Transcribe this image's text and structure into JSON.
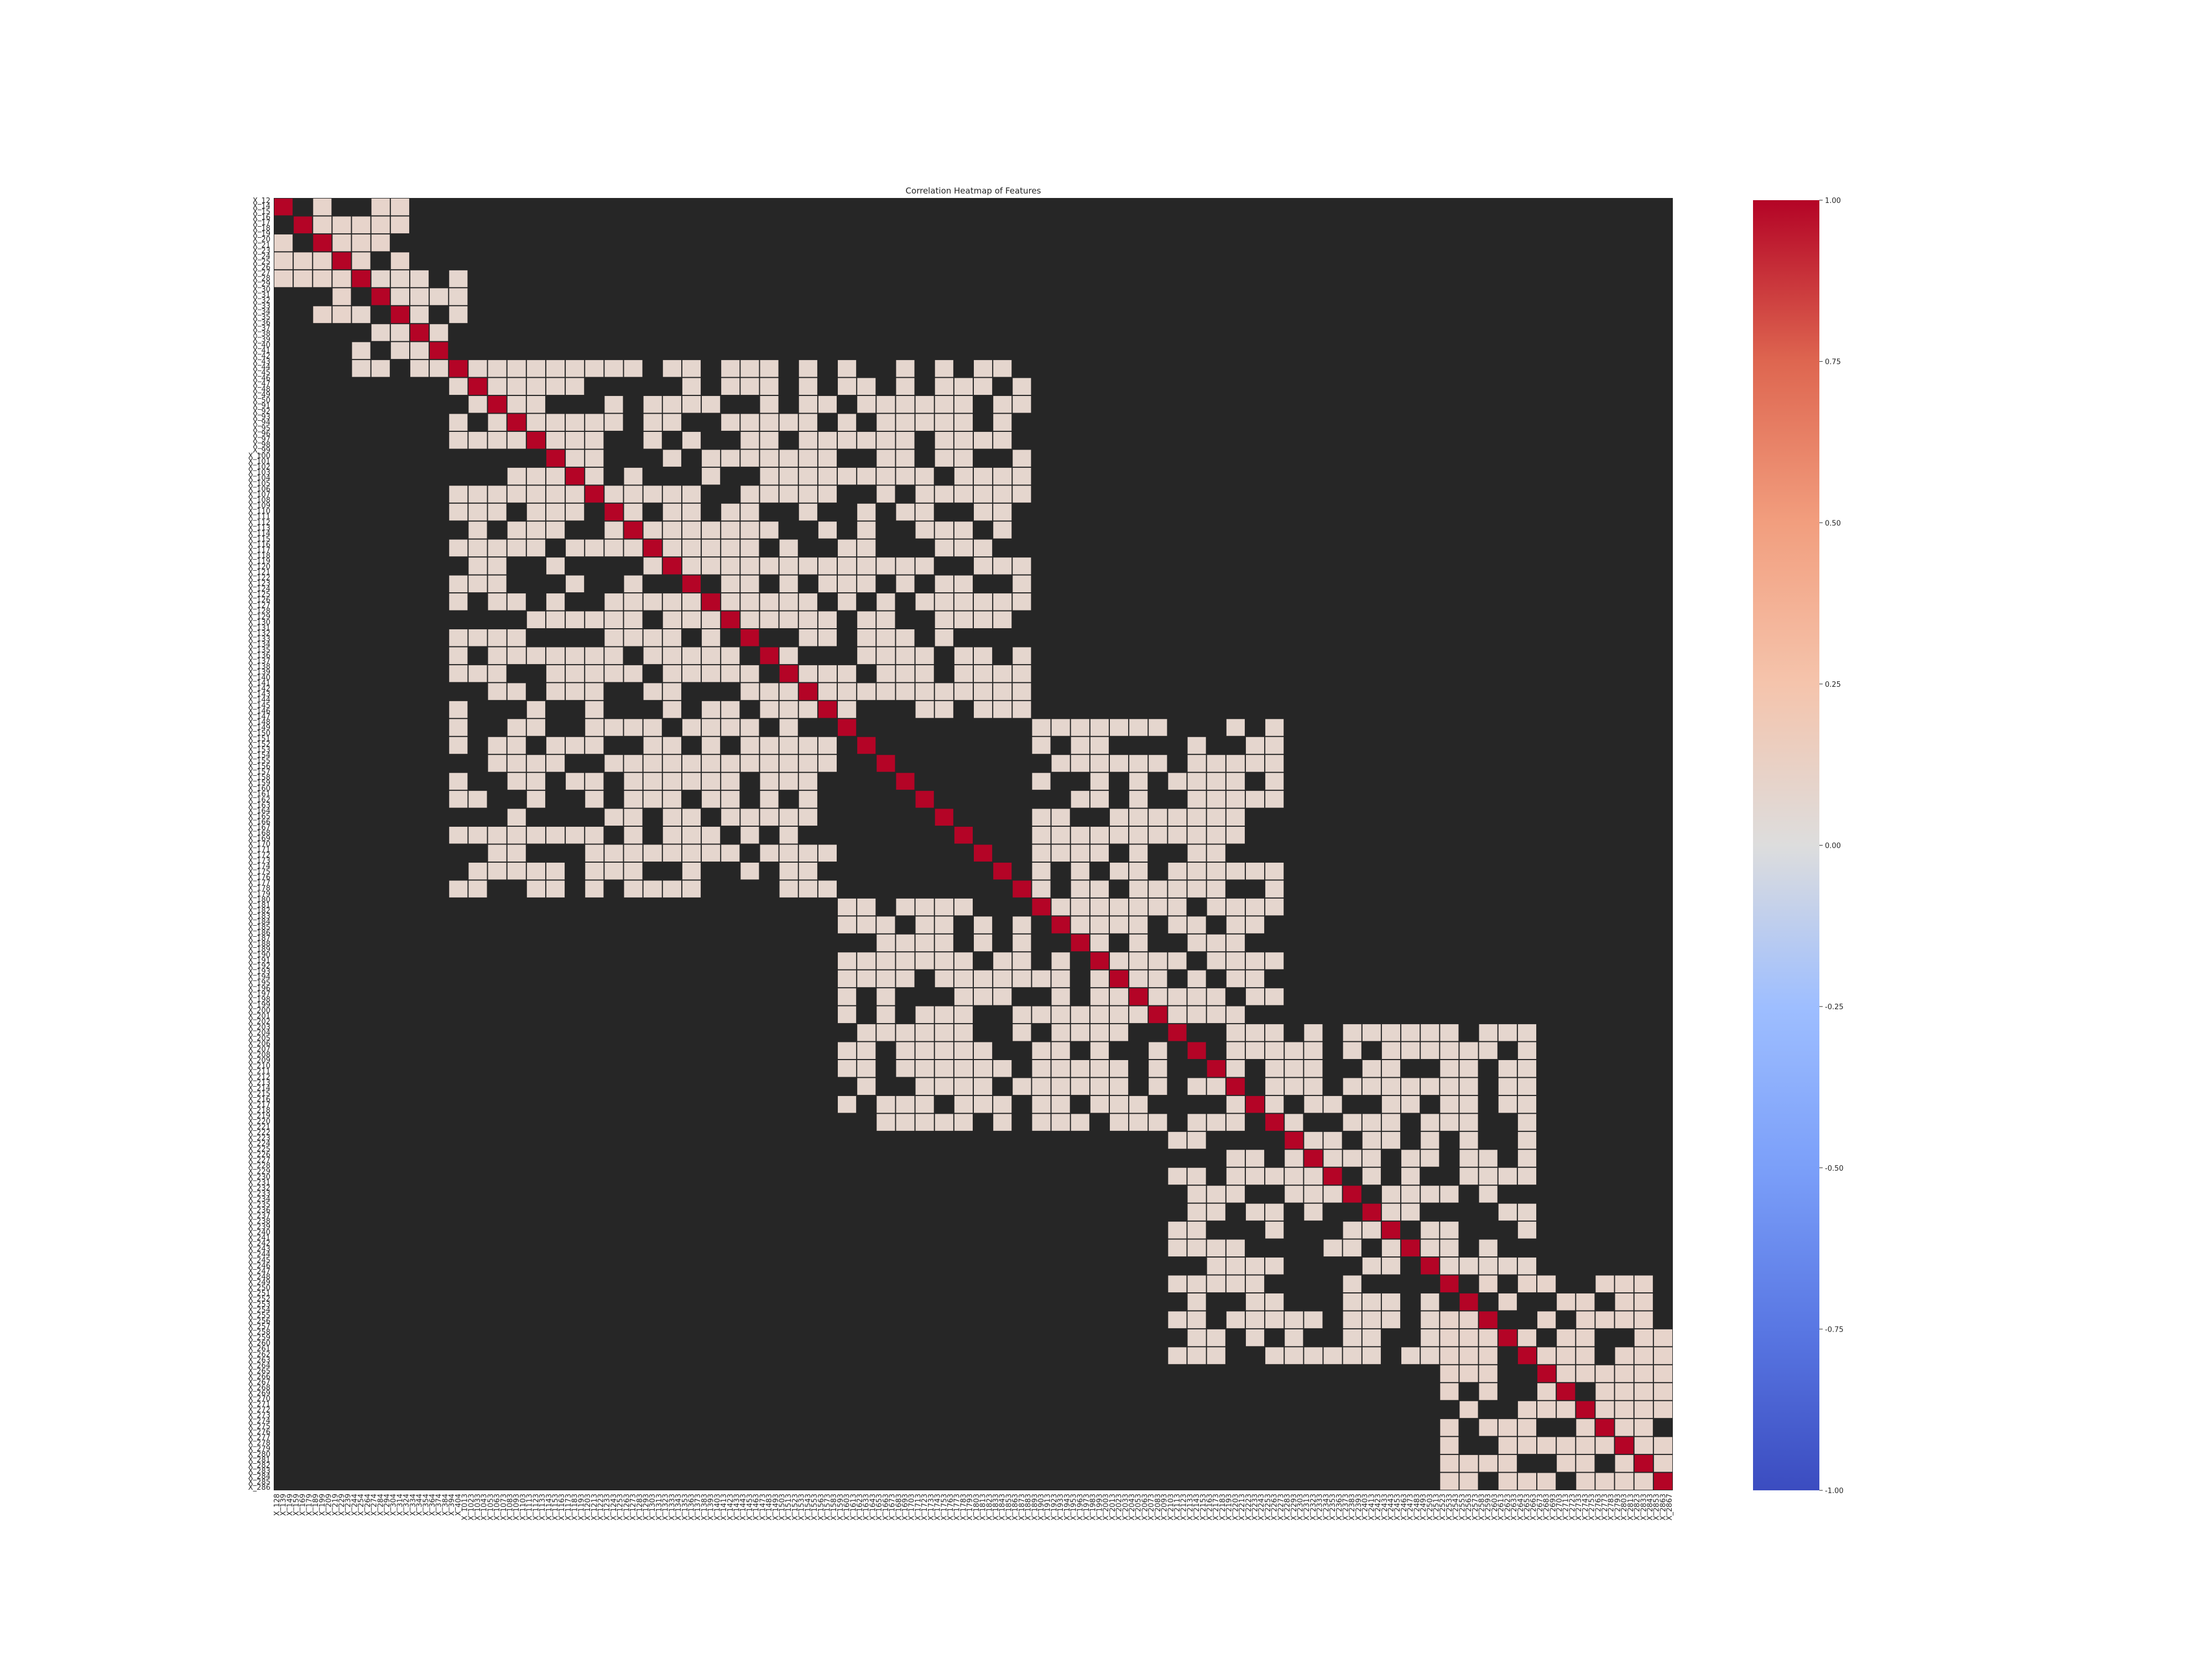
{
  "chart_data": {
    "type": "heatmap",
    "title": "Correlation Heatmap of Features",
    "xlabel": "",
    "ylabel": "",
    "colormap": "coolwarm",
    "cell_edge_color": "#262626",
    "colorbar": {
      "vmin": -1.0,
      "vmax": 1.0,
      "ticks": [
        1.0,
        0.75,
        0.5,
        0.25,
        0.0,
        -0.25,
        -0.5,
        -0.75,
        -1.0
      ],
      "tick_labels": [
        "1.00",
        "0.75",
        "0.50",
        "0.25",
        "0.00",
        "-0.25",
        "-0.50",
        "-0.75",
        "-1.00"
      ],
      "colors": [
        "#3b4cc0",
        "#6788ee",
        "#9abbff",
        "#c9d7f0",
        "#dddddd",
        "#f2cbb7",
        "#f7a889",
        "#e26952",
        "#b40426"
      ]
    },
    "y_tick_labels": [
      "X_12",
      "X_14",
      "X_15",
      "X_16",
      "X_17",
      "X_18",
      "X_19",
      "X_20",
      "X_21",
      "X_23",
      "X_24",
      "X_25",
      "X_26",
      "X_27",
      "X_28",
      "X_29",
      "X_30",
      "X_31",
      "X_32",
      "X_33",
      "X_34",
      "X_35",
      "X_36",
      "X_37",
      "X_38",
      "X_39",
      "X_40",
      "X_41",
      "X_42",
      "X_43",
      "X_44",
      "X_45",
      "X_46",
      "X_47",
      "X_48",
      "X_49",
      "X_50",
      "X_91",
      "X_92",
      "X_93",
      "X_94",
      "X_95",
      "X_96",
      "X_97",
      "X_98",
      "X_99",
      "X_100",
      "X_101",
      "X_102",
      "X_103",
      "X_104",
      "X_105",
      "X_106",
      "X_107",
      "X_108",
      "X_109",
      "X_110",
      "X_111",
      "X_112",
      "X_113",
      "X_114",
      "X_115",
      "X_116",
      "X_117",
      "X_118",
      "X_119",
      "X_120",
      "X_121",
      "X_122",
      "X_123",
      "X_124",
      "X_125",
      "X_126",
      "X_127",
      "X_128",
      "X_129",
      "X_130",
      "X_131",
      "X_132",
      "X_133",
      "X_134",
      "X_135",
      "X_136",
      "X_137",
      "X_138",
      "X_139",
      "X_140",
      "X_141",
      "X_142",
      "X_143",
      "X_144",
      "X_145",
      "X_146",
      "X_147",
      "X_148",
      "X_149",
      "X_150",
      "X_151",
      "X_152",
      "X_153",
      "X_154",
      "X_155",
      "X_156",
      "X_157",
      "X_158",
      "X_159",
      "X_160",
      "X_161",
      "X_162",
      "X_163",
      "X_164",
      "X_165",
      "X_166",
      "X_167",
      "X_168",
      "X_169",
      "X_170",
      "X_171",
      "X_172",
      "X_173",
      "X_174",
      "X_175",
      "X_176",
      "X_177",
      "X_178",
      "X_179",
      "X_180",
      "X_181",
      "X_182",
      "X_183",
      "X_184",
      "X_185",
      "X_186",
      "X_187",
      "X_188",
      "X_189",
      "X_190",
      "X_191",
      "X_192",
      "X_193",
      "X_194",
      "X_195",
      "X_196",
      "X_197",
      "X_198",
      "X_199",
      "X_200",
      "X_201",
      "X_202",
      "X_203",
      "X_204",
      "X_205",
      "X_206",
      "X_207",
      "X_208",
      "X_209",
      "X_210",
      "X_211",
      "X_212",
      "X_213",
      "X_214",
      "X_215",
      "X_216",
      "X_217",
      "X_218",
      "X_219",
      "X_220",
      "X_221",
      "X_222",
      "X_223",
      "X_224",
      "X_225",
      "X_226",
      "X_227",
      "X_228",
      "X_229",
      "X_230",
      "X_231",
      "X_232",
      "X_233",
      "X_234",
      "X_235",
      "X_236",
      "X_237",
      "X_238",
      "X_239",
      "X_240",
      "X_241",
      "X_242",
      "X_243",
      "X_244",
      "X_245",
      "X_246",
      "X_247",
      "X_248",
      "X_249",
      "X_250",
      "X_251",
      "X_252",
      "X_253",
      "X_254",
      "X_255",
      "X_256",
      "X_257",
      "X_258",
      "X_259",
      "X_260",
      "X_261",
      "X_262",
      "X_263",
      "X_264",
      "X_265",
      "X_266",
      "X_267",
      "X_268",
      "X_269",
      "X_270",
      "X_271",
      "X_272",
      "X_273",
      "X_274",
      "X_275",
      "X_276",
      "X_277",
      "X_278",
      "X_279",
      "X_280",
      "X_281",
      "X_282",
      "X_283",
      "X_284",
      "X_285",
      "X_286"
    ],
    "x_tick_labels": [
      "X_128",
      "X_139",
      "X_149",
      "X_159",
      "X_169",
      "X_179",
      "X_189",
      "X_199",
      "X_209",
      "X_219",
      "X_229",
      "X_239",
      "X_244",
      "X_254",
      "X_264",
      "X_274",
      "X_284",
      "X_294",
      "X_304",
      "X_314",
      "X_324",
      "X_334",
      "X_344",
      "X_354",
      "X_364",
      "X_374",
      "X_384",
      "X_394",
      "X_404",
      "X_1013",
      "X_1023",
      "X_1033",
      "X_1043",
      "X_1053",
      "X_1063",
      "X_1073",
      "X_1083",
      "X_1093",
      "X_1103",
      "X_1113",
      "X_1123",
      "X_1133",
      "X_1143",
      "X_1153",
      "X_1163",
      "X_1173",
      "X_1183",
      "X_1193",
      "X_1203",
      "X_1213",
      "X_1223",
      "X_1233",
      "X_1243",
      "X_1253",
      "X_1263",
      "X_1273",
      "X_1283",
      "X_1293",
      "X_1303",
      "X_1313",
      "X_1323",
      "X_1333",
      "X_1343",
      "X_1353",
      "X_1363",
      "X_1373",
      "X_1383",
      "X_1393",
      "X_1403",
      "X_1413",
      "X_1423",
      "X_1433",
      "X_1443",
      "X_1453",
      "X_1463",
      "X_1473",
      "X_1483",
      "X_1493",
      "X_1503",
      "X_1513",
      "X_1523",
      "X_1533",
      "X_1543",
      "X_1553",
      "X_1563",
      "X_1573",
      "X_1583",
      "X_1593",
      "X_1603",
      "X_1613",
      "X_1623",
      "X_1633",
      "X_1643",
      "X_1653",
      "X_1663",
      "X_1673",
      "X_1683",
      "X_1693",
      "X_1703",
      "X_1713",
      "X_1723",
      "X_1733",
      "X_1743",
      "X_1753",
      "X_1763",
      "X_1773",
      "X_1783",
      "X_1793",
      "X_1803",
      "X_1813",
      "X_1823",
      "X_1833",
      "X_1843",
      "X_1853",
      "X_1863",
      "X_1873",
      "X_1883",
      "X_1893",
      "X_1903",
      "X_1913",
      "X_1923",
      "X_1933",
      "X_1943",
      "X_1953",
      "X_1963",
      "X_1973",
      "X_1983",
      "X_1993",
      "X_2003",
      "X_2013",
      "X_2023",
      "X_2033",
      "X_2043",
      "X_2053",
      "X_2063",
      "X_2073",
      "X_2083",
      "X_2093",
      "X_2103",
      "X_2113",
      "X_2123",
      "X_2133",
      "X_2143",
      "X_2153",
      "X_2163",
      "X_2173",
      "X_2183",
      "X_2193",
      "X_2203",
      "X_2213",
      "X_2223",
      "X_2233",
      "X_2243",
      "X_2253",
      "X_2263",
      "X_2273",
      "X_2283",
      "X_2293",
      "X_2303",
      "X_2313",
      "X_2323",
      "X_2333",
      "X_2343",
      "X_2353",
      "X_2363",
      "X_2373",
      "X_2383",
      "X_2393",
      "X_2403",
      "X_2413",
      "X_2423",
      "X_2433",
      "X_2443",
      "X_2453",
      "X_2463",
      "X_2473",
      "X_2483",
      "X_2493",
      "X_2503",
      "X_2513",
      "X_2523",
      "X_2533",
      "X_2543",
      "X_2553",
      "X_2563",
      "X_2573",
      "X_2583",
      "X_2593",
      "X_2603",
      "X_2613",
      "X_2623",
      "X_2633",
      "X_2643",
      "X_2653",
      "X_2663",
      "X_2673",
      "X_2683",
      "X_2693",
      "X_2703",
      "X_2713",
      "X_2723",
      "X_2733",
      "X_2743",
      "X_2753",
      "X_2763",
      "X_2773",
      "X_2783",
      "X_2793",
      "X_2803",
      "X_2813",
      "X_2823",
      "X_2833",
      "X_2843",
      "X_2853",
      "X_2863",
      "X_2867"
    ],
    "diagonal_value": 1.0,
    "blocks": [
      {
        "rows": [
          0.0,
          0.1
        ],
        "cols": [
          0.0,
          0.06
        ],
        "value": 0.12
      },
      {
        "rows": [
          0.06,
          0.14
        ],
        "cols": [
          0.05,
          0.13
        ],
        "value": 0.1
      },
      {
        "rows": [
          0.13,
          0.4
        ],
        "cols": [
          0.13,
          0.54
        ],
        "value": 0.1
      },
      {
        "rows": [
          0.4,
          0.64
        ],
        "cols": [
          0.54,
          0.72
        ],
        "value": 0.1
      },
      {
        "rows": [
          0.64,
          0.84
        ],
        "cols": [
          0.68,
          0.9
        ],
        "value": 0.1
      },
      {
        "rows": [
          0.84,
          1.0
        ],
        "cols": [
          0.86,
          1.0
        ],
        "value": 0.12
      }
    ]
  }
}
